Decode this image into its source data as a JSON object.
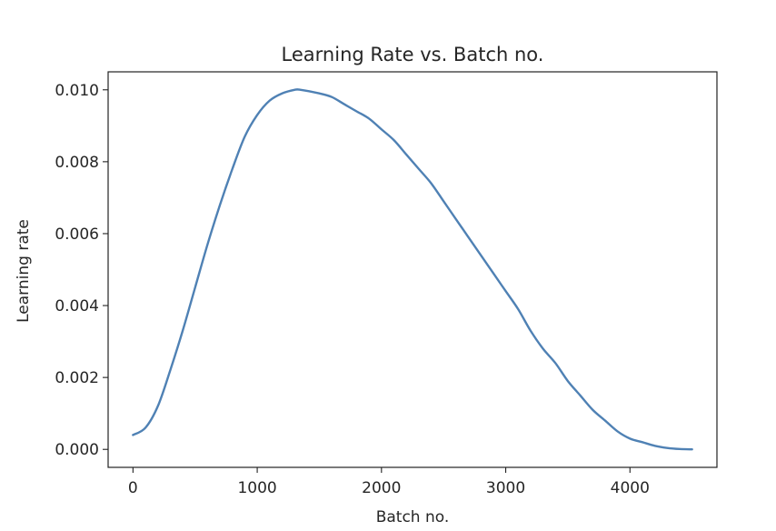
{
  "chart_data": {
    "type": "line",
    "title": "Learning Rate vs. Batch no.",
    "xlabel": "Batch no.",
    "ylabel": "Learning rate",
    "xlim": [
      -200,
      4700
    ],
    "ylim": [
      -0.0005,
      0.0105
    ],
    "xticks": [
      0,
      1000,
      2000,
      3000,
      4000
    ],
    "xtick_labels": [
      "0",
      "1000",
      "2000",
      "3000",
      "4000"
    ],
    "yticks": [
      0.0,
      0.002,
      0.004,
      0.006,
      0.008,
      0.01
    ],
    "ytick_labels": [
      "0.000",
      "0.002",
      "0.004",
      "0.006",
      "0.008",
      "0.010"
    ],
    "grid": false,
    "series": [
      {
        "color": "#4f81b4",
        "x": [
          0,
          100,
          200,
          300,
          400,
          500,
          600,
          700,
          800,
          900,
          1000,
          1100,
          1200,
          1300,
          1350,
          1500,
          1600,
          1700,
          1800,
          1900,
          2000,
          2100,
          2200,
          2300,
          2400,
          2500,
          2600,
          2700,
          2800,
          2900,
          3000,
          3100,
          3200,
          3300,
          3400,
          3500,
          3600,
          3700,
          3800,
          3900,
          4000,
          4100,
          4200,
          4300,
          4400,
          4500
        ],
        "y": [
          0.0004,
          0.0006,
          0.0012,
          0.0022,
          0.0033,
          0.0045,
          0.0057,
          0.0068,
          0.0078,
          0.0087,
          0.0093,
          0.0097,
          0.0099,
          0.01,
          0.01,
          0.0099,
          0.0098,
          0.0096,
          0.0094,
          0.0092,
          0.0089,
          0.0086,
          0.0082,
          0.0078,
          0.0074,
          0.0069,
          0.0064,
          0.0059,
          0.0054,
          0.0049,
          0.0044,
          0.0039,
          0.0033,
          0.0028,
          0.0024,
          0.0019,
          0.0015,
          0.0011,
          0.0008,
          0.0005,
          0.0003,
          0.0002,
          0.0001,
          4e-05,
          1e-05,
          0.0
        ]
      }
    ]
  }
}
